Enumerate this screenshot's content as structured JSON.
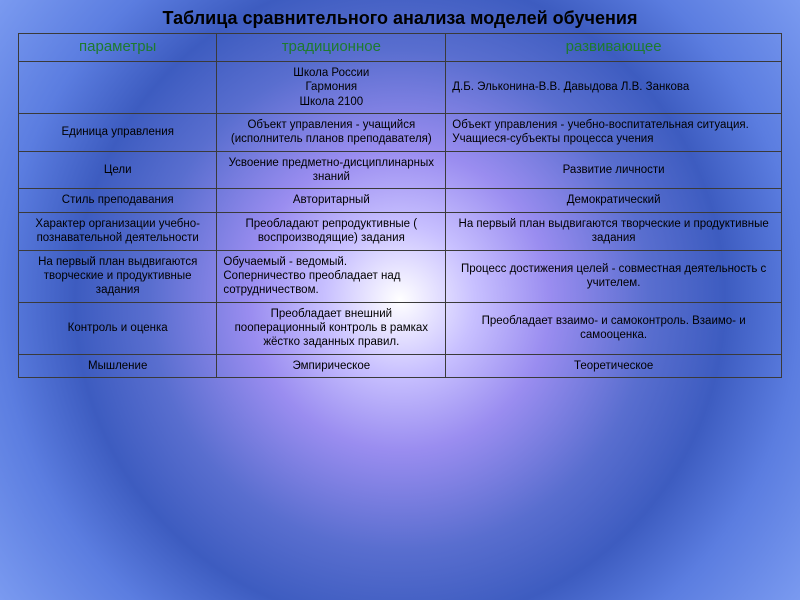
{
  "title": "Таблица сравнительного анализа моделей обучения",
  "header_color": "#1e7a2e",
  "columns": [
    "параметры",
    "традиционное",
    "развивающее"
  ],
  "column_widths_pct": [
    26,
    30,
    44
  ],
  "border_color": "#3a3a3a",
  "title_fontsize": 18,
  "header_fontsize": 15,
  "cell_fontsize": 11.5,
  "background_gradient": [
    "#ffffff",
    "#c8c0ff",
    "#9a8df0",
    "#596ecf",
    "#3d5cc0",
    "#5b7de0",
    "#7a9af0"
  ],
  "rows": [
    {
      "param": "",
      "trad_lines": [
        "Школа России",
        "Гармония",
        "Школа 2100"
      ],
      "dev": "Д.Б. Эльконина-В.В. Давыдова Л.В. Занкова",
      "trad_align": "center",
      "dev_align": "left"
    },
    {
      "param": "Единица управления",
      "trad": "Объект управления - учащийся (исполнитель планов преподавателя)",
      "dev": "Объект управления - учебно-воспитательная ситуация. Учащиеся-субъекты процесса учения",
      "dev_align": "left"
    },
    {
      "param": "Цели",
      "trad": "Усвоение предметно-дисциплинарных знаний",
      "dev": "Развитие личности"
    },
    {
      "param": "Стиль преподавания",
      "trad": "Авторитарный",
      "dev": "Демократический"
    },
    {
      "param": "Характер организации учебно-познавательной деятельности",
      "trad": "Преобладают репродуктивные ( воспроизводящие) задания",
      "dev": "На первый план выдвигаются творческие и продуктивные задания"
    },
    {
      "param": "На первый план выдвигаются творческие и продуктивные задания",
      "trad_lines": [
        "Обучаемый - ведомый.",
        "Соперничество преобладает над сотрудничеством."
      ],
      "trad_align": "left",
      "dev": "Процесс достижения целей - совместная деятельность с учителем."
    },
    {
      "param": "Контроль и оценка",
      "trad": "Преобладает внешний пооперационный контроль в рамках жёстко заданных правил.",
      "dev": "Преобладает взаимо- и самоконтроль. Взаимо- и самооценка."
    },
    {
      "param": "Мышление",
      "trad": "Эмпирическое",
      "dev": "Теоретическое"
    }
  ]
}
